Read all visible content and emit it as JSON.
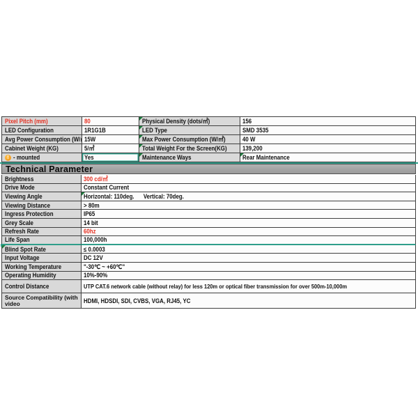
{
  "colors": {
    "label_bg": "#d9d9d9",
    "value_bg": "#fcfcfc",
    "band_bg": "#a6a6a6",
    "border": "#3f3f3f",
    "highlight_red": "#e63223",
    "selection_teal": "#2f9e8a",
    "flag_green": "#1c7a3c",
    "warning_orange": "#f29b1d"
  },
  "spec_table": {
    "rows": [
      {
        "c1": "Pixel Pitch (mm)",
        "c2": "80",
        "c3": "Physical Density (dots/㎡)",
        "c4": "156",
        "red": true,
        "c3_flag": true
      },
      {
        "c1": "LED Configuration",
        "c2": "1R1G1B",
        "c3": "LED Type",
        "c4": "SMD 3535",
        "c3_flag": true
      },
      {
        "c1": "Avg Power Consumption (W/㎡)",
        "c2": "15W",
        "c3": "Max Power Consumption (W/㎡)",
        "c4": "40 W",
        "c3_flag": true
      },
      {
        "c1": "Cabinet Weight (KG)",
        "c2": "5/㎡",
        "c3": "Total Weight For the Screen(KG)",
        "c4": "139,200",
        "c3_flag": true
      },
      {
        "c1": "- mounted",
        "c2": "Yes",
        "c3": "Maintenance Ways",
        "c4": "Rear Maintenance",
        "icon": "warning-icon",
        "selected": true,
        "c3_flag": true,
        "c4_flag": true
      }
    ]
  },
  "section_header": {
    "title": "Technical Parameter"
  },
  "tech_table": {
    "rows": [
      {
        "label": "Brightness",
        "value": "300 cd/㎡",
        "red": true
      },
      {
        "label": "Drive Mode",
        "value": "Constant Current"
      },
      {
        "label": "Viewing Angle",
        "value": "Horizontal: 110deg.      Vertical: 70deg.",
        "value_flag": true
      },
      {
        "label": "Viewing Distance",
        "value": "> 80m"
      },
      {
        "label": "Ingress Protection",
        "value": "IP65"
      },
      {
        "label": "Grey Scale",
        "value": "14 bit"
      },
      {
        "label": "Refresh Rate",
        "value": "60hz",
        "red": true
      },
      {
        "label": "Life Span",
        "value": "100,000h",
        "teal_bottom": true
      },
      {
        "label": "Blind Spot Rate",
        "value": "≤ 0.0003",
        "label_flag": true
      },
      {
        "label": "Input Voltage",
        "value": "DC 12V"
      },
      {
        "label": "Working Temperature",
        "value": "\"-30℃ ~ +60℃\""
      },
      {
        "label": "Operating Humidity",
        "value": "10%-90%"
      },
      {
        "label": "Control Distance",
        "value": "UTP CAT.6 network cable (without relay) for less 120m or optical fiber transmission for over 500m-10,000m",
        "tall": true
      },
      {
        "label": "Source Compatibility (with video",
        "value": "HDMI, HDSDI, SDI, CVBS, VGA, RJ45, YC",
        "taller": true,
        "label_wrap": true
      }
    ]
  }
}
